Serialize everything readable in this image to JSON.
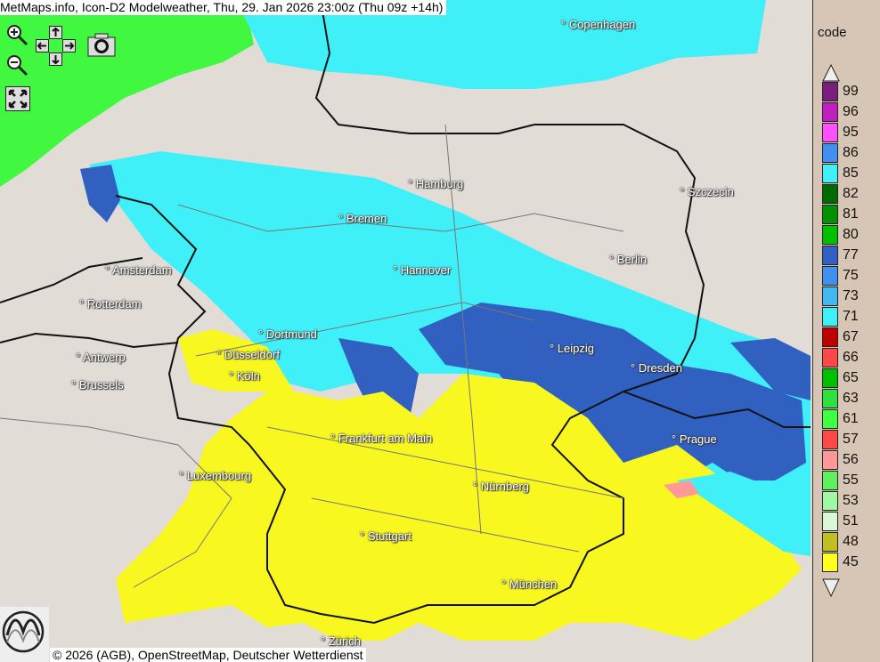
{
  "title": "MetMaps.info, Icon-D2 Modelweather, Thu, 29. Jan 2026 23:00z (Thu 09z +14h)",
  "credit": "© 2026 (AGB), OpenStreetMap, Deutscher Wetterdienst",
  "controls": {
    "zoom_in": "zoom-in-icon",
    "zoom_out": "zoom-out-icon",
    "pan": "pan-arrows-icon",
    "screenshot": "camera-icon",
    "fullscreen": "fullscreen-icon"
  },
  "logo": "METMAPS",
  "legend": {
    "title": "code",
    "items": [
      {
        "code": "99",
        "color": "#7b1f7f"
      },
      {
        "code": "96",
        "color": "#c020c0"
      },
      {
        "code": "95",
        "color": "#ff50ff"
      },
      {
        "code": "86",
        "color": "#4090f0"
      },
      {
        "code": "85",
        "color": "#40f0f8"
      },
      {
        "code": "82",
        "color": "#006a00"
      },
      {
        "code": "81",
        "color": "#009000"
      },
      {
        "code": "80",
        "color": "#00c000"
      },
      {
        "code": "77",
        "color": "#3060c0"
      },
      {
        "code": "75",
        "color": "#4090f0"
      },
      {
        "code": "73",
        "color": "#40b8f0"
      },
      {
        "code": "71",
        "color": "#40f0f8"
      },
      {
        "code": "67",
        "color": "#c00000"
      },
      {
        "code": "66",
        "color": "#ff4848"
      },
      {
        "code": "65",
        "color": "#00c000"
      },
      {
        "code": "63",
        "color": "#30e040"
      },
      {
        "code": "61",
        "color": "#40ff40"
      },
      {
        "code": "57",
        "color": "#ff4848"
      },
      {
        "code": "56",
        "color": "#ff9898"
      },
      {
        "code": "55",
        "color": "#60f060"
      },
      {
        "code": "53",
        "color": "#a0f8a0"
      },
      {
        "code": "51",
        "color": "#d8f8d8"
      },
      {
        "code": "48",
        "color": "#c0c020"
      },
      {
        "code": "45",
        "color": "#ffff20"
      }
    ]
  },
  "cities": [
    {
      "name": "Copenhagen"
    },
    {
      "name": "Hamburg"
    },
    {
      "name": "Szczecin"
    },
    {
      "name": "Bremen"
    },
    {
      "name": "Berlin"
    },
    {
      "name": "Amsterdam"
    },
    {
      "name": "Hannover"
    },
    {
      "name": "Rotterdam"
    },
    {
      "name": "Dortmund"
    },
    {
      "name": "Leipzig"
    },
    {
      "name": "Antwerp"
    },
    {
      "name": "Düsseldorf"
    },
    {
      "name": "Dresden"
    },
    {
      "name": "Brussels"
    },
    {
      "name": "Köln"
    },
    {
      "name": "Frankfurt am Main"
    },
    {
      "name": "Prague"
    },
    {
      "name": "Luxembourg"
    },
    {
      "name": "Nürnberg"
    },
    {
      "name": "Stuttgart"
    },
    {
      "name": "München"
    },
    {
      "name": "Zürich"
    }
  ]
}
